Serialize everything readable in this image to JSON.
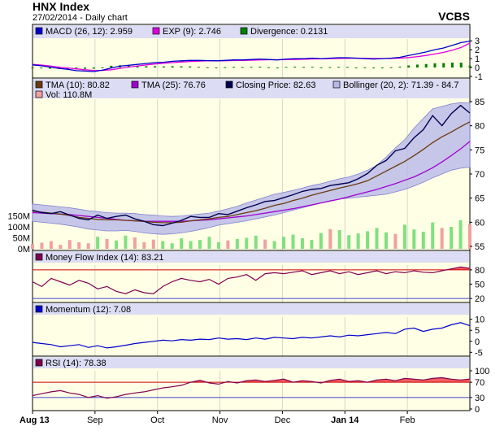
{
  "header": {
    "title": "HNX Index",
    "subtitle": "27/02/2014 - Daily chart",
    "broker": "VCBS"
  },
  "x_axis": {
    "labels": [
      "Aug 13",
      "Sep",
      "Oct",
      "Nov",
      "Dec",
      "Jan 14",
      "Feb"
    ],
    "bold": [
      "Aug 13",
      "Jan 14"
    ]
  },
  "colors": {
    "panel_bg": "#ffffe6",
    "legend_bg": "#dcdcf5",
    "price_line": "#000050",
    "tma10": "#6b3a10",
    "tma25": "#a000d0",
    "bollinger_fill": "#b8b8e8",
    "bollinger_edge": "#8080d0",
    "macd": "#0000cc",
    "exp": "#e000e0",
    "divergence": "#008000",
    "vol_up": "#80e080",
    "vol_down": "#f0a0a0",
    "mfi": "#800050",
    "momentum": "#0000cc",
    "rsi": "#800050",
    "overbought_fill": "#f06060",
    "ob_line": "#d00000",
    "os_line": "#4040d0"
  },
  "chart_data": [
    {
      "type": "line",
      "panel": "MACD",
      "legend": [
        {
          "label": "MACD (26, 12): 2.959",
          "color": "#0000cc"
        },
        {
          "label": "EXP (9): 2.746",
          "color": "#e000e0"
        },
        {
          "label": "Divergence: 0.2131",
          "color": "#008000"
        }
      ],
      "y_ticks": [
        "3",
        "2",
        "1",
        "0",
        "-1"
      ],
      "ylim": [
        -1,
        3.2
      ],
      "series": [
        {
          "name": "MACD (26, 12)",
          "values": [
            0.3,
            0.2,
            0.05,
            -0.1,
            -0.2,
            -0.35,
            -0.4,
            -0.45,
            -0.3,
            -0.05,
            0.15,
            0.25,
            0.35,
            0.45,
            0.55,
            0.6,
            0.7,
            0.75,
            0.8,
            0.8,
            0.78,
            0.75,
            0.8,
            0.85,
            0.85,
            0.9,
            0.95,
            0.9,
            0.85,
            0.95,
            1.0,
            1.0,
            1.05,
            1.0,
            1.05,
            1.1,
            1.1,
            1.05,
            1.0,
            0.95,
            1.0,
            1.05,
            1.15,
            1.35,
            1.55,
            1.75,
            2.0,
            2.2,
            2.5,
            2.8,
            2.959
          ]
        },
        {
          "name": "EXP (9)",
          "values": [
            0.35,
            0.28,
            0.18,
            0.05,
            -0.05,
            -0.15,
            -0.25,
            -0.32,
            -0.32,
            -0.25,
            -0.1,
            0.05,
            0.18,
            0.3,
            0.4,
            0.48,
            0.55,
            0.62,
            0.68,
            0.72,
            0.75,
            0.75,
            0.76,
            0.78,
            0.8,
            0.82,
            0.85,
            0.87,
            0.87,
            0.88,
            0.9,
            0.93,
            0.96,
            0.98,
            1.0,
            1.02,
            1.04,
            1.05,
            1.04,
            1.02,
            1.01,
            1.02,
            1.05,
            1.12,
            1.22,
            1.36,
            1.52,
            1.7,
            1.95,
            2.25,
            2.746
          ]
        }
      ]
    },
    {
      "type": "line",
      "panel": "Price",
      "legend": [
        {
          "label": "TMA (10): 80.82",
          "color": "#6b3a10"
        },
        {
          "label": "TMA (25): 76.76",
          "color": "#a000d0"
        },
        {
          "label": "Closing Price: 82.63",
          "color": "#000050"
        },
        {
          "label": "Bollinger (20, 2): 71.39 - 84.7",
          "color": "#b8b8e8"
        },
        {
          "label": "Vol: 110.8M",
          "color": "#f0a0a0"
        }
      ],
      "y_ticks": [
        "85",
        "80",
        "75",
        "70",
        "65",
        "60",
        "55"
      ],
      "ylim": [
        54.5,
        85.5
      ],
      "vol_ticks": [
        "150M",
        "100M",
        "50M",
        "0M"
      ],
      "vol_lim": [
        0,
        200
      ],
      "series": [
        {
          "name": "Closing Price",
          "values": [
            62.5,
            62.0,
            61.8,
            62.2,
            61.5,
            60.8,
            60.5,
            61.5,
            60.8,
            61.2,
            61.5,
            60.7,
            60.2,
            59.5,
            59.3,
            59.8,
            60.4,
            61.2,
            61.0,
            61.0,
            61.8,
            61.6,
            62.3,
            63.0,
            63.6,
            64.3,
            64.5,
            65.1,
            65.7,
            66.4,
            66.8,
            67.0,
            67.6,
            67.9,
            68.2,
            69.0,
            70.1,
            71.8,
            72.8,
            74.8,
            75.3,
            77.5,
            79.2,
            82.1,
            80.0,
            82.5,
            84.2,
            82.63
          ]
        },
        {
          "name": "TMA (10)",
          "values": [
            62.3,
            62.1,
            61.9,
            61.7,
            61.4,
            61.0,
            60.8,
            60.6,
            60.5,
            60.5,
            60.4,
            60.3,
            60.2,
            60.0,
            59.9,
            59.9,
            60.0,
            60.3,
            60.5,
            60.7,
            61.0,
            61.2,
            61.6,
            62.0,
            62.4,
            62.9,
            63.5,
            63.9,
            64.5,
            65.0,
            65.6,
            66.1,
            66.6,
            67.1,
            67.5,
            68.0,
            68.6,
            69.6,
            70.6,
            71.6,
            72.6,
            73.8,
            75.1,
            76.5,
            77.7,
            78.7,
            79.8,
            80.82
          ]
        },
        {
          "name": "TMA (25)",
          "values": [
            62.0,
            61.9,
            61.8,
            61.7,
            61.6,
            61.4,
            61.2,
            61.0,
            60.8,
            60.6,
            60.4,
            60.3,
            60.2,
            60.2,
            60.2,
            60.2,
            60.2,
            60.3,
            60.4,
            60.5,
            60.7,
            60.9,
            61.1,
            61.3,
            61.6,
            61.9,
            62.2,
            62.5,
            62.8,
            63.2,
            63.6,
            64.0,
            64.4,
            64.8,
            65.3,
            65.8,
            66.3,
            66.8,
            67.4,
            68.0,
            68.7,
            69.4,
            70.3,
            71.3,
            72.5,
            73.8,
            75.2,
            76.76
          ]
        },
        {
          "name": "Bollinger upper",
          "values": [
            63.8,
            63.6,
            63.4,
            63.2,
            63.0,
            62.7,
            62.4,
            62.2,
            62.0,
            61.9,
            61.9,
            61.8,
            61.6,
            61.5,
            61.3,
            61.2,
            61.3,
            61.5,
            61.7,
            61.9,
            62.3,
            62.8,
            63.3,
            64.0,
            64.6,
            65.2,
            65.8,
            66.2,
            66.6,
            67.1,
            67.6,
            68.0,
            68.5,
            69.0,
            69.4,
            70.0,
            70.8,
            71.8,
            73.5,
            75.4,
            77.1,
            79.5,
            81.5,
            83.5,
            84.0,
            84.5,
            84.8,
            84.7
          ]
        },
        {
          "name": "Bollinger lower",
          "values": [
            60.2,
            60.0,
            59.8,
            59.6,
            59.3,
            59.0,
            58.6,
            58.4,
            58.2,
            58.2,
            58.3,
            58.1,
            57.8,
            57.6,
            57.5,
            57.6,
            57.8,
            58.1,
            58.5,
            58.9,
            59.4,
            59.7,
            60.0,
            60.3,
            60.7,
            61.1,
            61.5,
            62.0,
            62.5,
            63.0,
            63.5,
            64.0,
            64.5,
            64.8,
            65.0,
            65.2,
            65.4,
            65.6,
            65.8,
            66.3,
            66.8,
            67.5,
            68.3,
            69.2,
            70.0,
            70.8,
            71.2,
            71.39
          ]
        }
      ],
      "volume": [
        22,
        28,
        35,
        18,
        40,
        30,
        25,
        55,
        45,
        38,
        60,
        52,
        30,
        42,
        35,
        25,
        48,
        35,
        40,
        55,
        30,
        38,
        45,
        50,
        60,
        42,
        35,
        55,
        65,
        48,
        40,
        72,
        90,
        85,
        62,
        70,
        80,
        95,
        75,
        68,
        110,
        88,
        78,
        120,
        95,
        100,
        130,
        110.8
      ],
      "volume_colors": [
        "down",
        "down",
        "down",
        "down",
        "down",
        "down",
        "down",
        "up",
        "down",
        "up",
        "up",
        "down",
        "down",
        "down",
        "up",
        "up",
        "up",
        "up",
        "up",
        "up",
        "up",
        "down",
        "up",
        "up",
        "up",
        "down",
        "up",
        "up",
        "up",
        "up",
        "up",
        "up",
        "down",
        "up",
        "up",
        "up",
        "up",
        "up",
        "up",
        "down",
        "up",
        "up",
        "up",
        "up",
        "down",
        "up",
        "up",
        "down"
      ]
    },
    {
      "type": "line",
      "panel": "Money Flow Index",
      "legend": [
        {
          "label": "Money Flow Index (14): 83.21",
          "color": "#800050"
        }
      ],
      "y_ticks": [
        "80",
        "50",
        "20"
      ],
      "ylim": [
        15,
        90
      ],
      "overbought": 80,
      "oversold": 20,
      "series": [
        {
          "name": "Money Flow Index (14)",
          "values": [
            55,
            45,
            62,
            55,
            48,
            58,
            52,
            40,
            45,
            35,
            30,
            38,
            32,
            30,
            45,
            55,
            62,
            58,
            55,
            60,
            50,
            62,
            65,
            70,
            58,
            72,
            74,
            72,
            75,
            78,
            70,
            74,
            78,
            72,
            76,
            70,
            74,
            78,
            72,
            76,
            74,
            78,
            75,
            74,
            78,
            82,
            86,
            83.21
          ]
        }
      ]
    },
    {
      "type": "line",
      "panel": "Momentum",
      "legend": [
        {
          "label": "Momentum (12): 7.08",
          "color": "#0000cc"
        }
      ],
      "y_ticks": [
        "10",
        "5",
        "0",
        "-5"
      ],
      "ylim": [
        -6,
        11
      ],
      "series": [
        {
          "name": "Momentum (12)",
          "values": [
            -0.5,
            -1.0,
            -1.5,
            -2.5,
            -2.0,
            -1.5,
            -2.8,
            -2.0,
            -3.0,
            -2.5,
            -1.8,
            -1.0,
            -0.5,
            0.0,
            0.5,
            0.2,
            0.8,
            0.5,
            1.0,
            0.8,
            1.5,
            1.0,
            1.2,
            0.8,
            1.5,
            1.0,
            1.8,
            1.5,
            1.2,
            1.8,
            1.5,
            2.0,
            2.5,
            2.0,
            2.8,
            2.5,
            3.0,
            3.5,
            4.0,
            3.5,
            5.5,
            6.0,
            4.5,
            5.5,
            6.0,
            7.5,
            8.5,
            7.08
          ]
        }
      ]
    },
    {
      "type": "line",
      "panel": "RSI",
      "legend": [
        {
          "label": "RSI (14): 78.38",
          "color": "#800050"
        }
      ],
      "y_ticks": [
        "100",
        "70",
        "30",
        "0"
      ],
      "ylim": [
        0,
        100
      ],
      "overbought": 70,
      "oversold": 30,
      "series": [
        {
          "name": "RSI (14)",
          "values": [
            35,
            40,
            45,
            48,
            42,
            38,
            30,
            35,
            28,
            32,
            38,
            42,
            45,
            50,
            55,
            58,
            62,
            70,
            75,
            68,
            65,
            72,
            68,
            74,
            76,
            72,
            75,
            78,
            70,
            74,
            72,
            68,
            75,
            78,
            72,
            74,
            70,
            76,
            78,
            74,
            80,
            78,
            76,
            80,
            82,
            78,
            76,
            78.38
          ]
        }
      ]
    }
  ]
}
